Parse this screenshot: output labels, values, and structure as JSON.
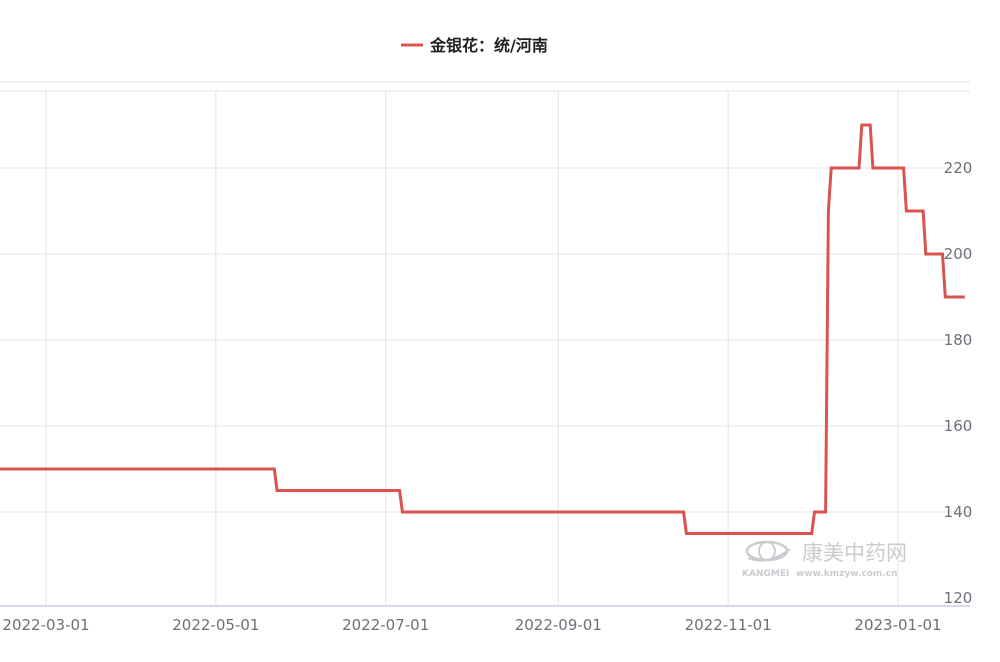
{
  "chart_data": {
    "type": "line",
    "legend": {
      "position": "top-center"
    },
    "series": [
      {
        "name": "金银花：统/河南",
        "color": "#d9534f",
        "step": true,
        "points": [
          [
            "2022-02-10",
            150
          ],
          [
            "2022-05-22",
            150
          ],
          [
            "2022-05-23",
            145
          ],
          [
            "2022-07-06",
            145
          ],
          [
            "2022-07-07",
            140
          ],
          [
            "2022-10-16",
            140
          ],
          [
            "2022-10-17",
            135
          ],
          [
            "2022-12-01",
            135
          ],
          [
            "2022-12-02",
            140
          ],
          [
            "2022-12-06",
            140
          ],
          [
            "2022-12-07",
            210
          ],
          [
            "2022-12-08",
            220
          ],
          [
            "2022-12-18",
            220
          ],
          [
            "2022-12-19",
            230
          ],
          [
            "2022-12-22",
            230
          ],
          [
            "2022-12-23",
            220
          ],
          [
            "2023-01-03",
            220
          ],
          [
            "2023-01-04",
            210
          ],
          [
            "2023-01-10",
            210
          ],
          [
            "2023-01-11",
            200
          ],
          [
            "2023-01-17",
            200
          ],
          [
            "2023-01-18",
            190
          ],
          [
            "2023-01-25",
            190
          ]
        ]
      }
    ],
    "x_ticks": [
      "2022-03-01",
      "2022-05-01",
      "2022-07-01",
      "2022-09-01",
      "2022-11-01",
      "2023-01-01"
    ],
    "y_ticks": [
      120,
      140,
      160,
      180,
      200,
      220
    ],
    "ylim": [
      120,
      240
    ],
    "y_axis_side": "right",
    "grid": true
  },
  "watermark": {
    "cn": "康美中药网",
    "en": "KANGMEI",
    "url": "www.kmzyw.com.cn"
  }
}
